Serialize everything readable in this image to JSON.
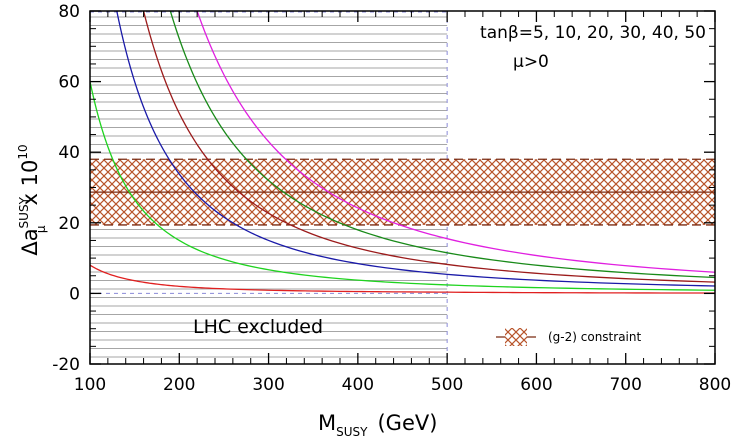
{
  "chart_data": {
    "type": "line",
    "xlabel": {
      "main": "M",
      "sub": "SUSY",
      "unit": "(GeV)"
    },
    "ylabel": {
      "main": "Δa",
      "sup": "SUSY",
      "sub": "μ",
      "mult": "x 10",
      "exp": "10"
    },
    "xlim": [
      100,
      800
    ],
    "ylim": [
      -20,
      80
    ],
    "xticks": [
      "100",
      "200",
      "300",
      "400",
      "500",
      "600",
      "700",
      "800"
    ],
    "yticks": [
      "-20",
      "0",
      "20",
      "40",
      "60",
      "80"
    ],
    "grid": "horizontal lines inside excluded region",
    "tanbeta_label": "tanβ=5, 10, 20, 30, 40, 50",
    "mu_label": "μ>0",
    "excluded_region": {
      "label": "LHC excluded",
      "x_range": [
        100,
        500
      ]
    },
    "constraint_band": {
      "center": 28.7,
      "lower": 19.4,
      "upper": 38,
      "legend_label": "(g-2) constraint"
    },
    "series": [
      {
        "tanbeta": 5,
        "color": "#e02020",
        "values": [
          [
            100,
            8
          ],
          [
            150,
            3.6
          ],
          [
            200,
            2
          ],
          [
            300,
            0.9
          ],
          [
            500,
            0.35
          ],
          [
            800,
            0.1
          ]
        ]
      },
      {
        "tanbeta": 10,
        "color": "#1fd31f",
        "values": [
          [
            100,
            60
          ],
          [
            150,
            26.5
          ],
          [
            200,
            15
          ],
          [
            300,
            6.7
          ],
          [
            500,
            2.4
          ],
          [
            800,
            0.9
          ]
        ]
      },
      {
        "tanbeta": 20,
        "color": "#1a1aa8",
        "values": [
          [
            130,
            80
          ],
          [
            150,
            60
          ],
          [
            200,
            33.8
          ],
          [
            300,
            15
          ],
          [
            500,
            5.4
          ],
          [
            800,
            2.1
          ]
        ]
      },
      {
        "tanbeta": 30,
        "color": "#9b1b1b",
        "values": [
          [
            160,
            80
          ],
          [
            200,
            51
          ],
          [
            300,
            22.7
          ],
          [
            500,
            8.2
          ],
          [
            800,
            3.2
          ]
        ]
      },
      {
        "tanbeta": 40,
        "color": "#198a19",
        "values": [
          [
            190,
            80
          ],
          [
            250,
            46
          ],
          [
            300,
            32
          ],
          [
            500,
            11.5
          ],
          [
            800,
            4.5
          ]
        ]
      },
      {
        "tanbeta": 50,
        "color": "#e020e0",
        "values": [
          [
            220,
            80
          ],
          [
            300,
            43
          ],
          [
            400,
            24.2
          ],
          [
            500,
            15.5
          ],
          [
            800,
            6
          ]
        ]
      }
    ]
  }
}
